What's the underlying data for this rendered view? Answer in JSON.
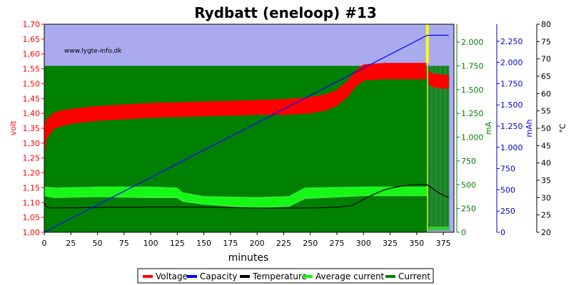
{
  "chart_data": {
    "type": "line",
    "title": "Rydbatt (eneloop) #13",
    "xlabel": "minutes",
    "watermark": "www.lygte-info.dk",
    "xlim": [
      0,
      385
    ],
    "xticks": [
      0,
      25,
      50,
      75,
      100,
      125,
      150,
      175,
      200,
      225,
      250,
      275,
      300,
      325,
      350,
      375
    ],
    "axes": {
      "volt": {
        "label": "volt",
        "color": "#ff0000",
        "range": [
          1.0,
          1.7
        ],
        "ticks": [
          "1,00",
          "1,05",
          "1,10",
          "1,15",
          "1,20",
          "1,25",
          "1,30",
          "1,35",
          "1,40",
          "1,45",
          "1,50",
          "1,55",
          "1,60",
          "1,65",
          "1,70"
        ]
      },
      "ma": {
        "label": "mA",
        "color": "#008000",
        "range": [
          0,
          2187.5
        ],
        "ticks": [
          "0",
          "250",
          "500",
          "750",
          "1.000",
          "1.250",
          "1.500",
          "1.750",
          "2.000"
        ]
      },
      "mah": {
        "label": "mAh",
        "color": "#0000cc",
        "range": [
          0,
          2450
        ],
        "ticks": [
          "0",
          "250",
          "500",
          "750",
          "1.000",
          "1.250",
          "1.500",
          "1.750",
          "2.000",
          "2.250"
        ]
      },
      "temp": {
        "label": "°C",
        "color": "#000000",
        "range": [
          20,
          80
        ],
        "ticks": [
          "20",
          "25",
          "30",
          "35",
          "40",
          "45",
          "50",
          "55",
          "60",
          "65",
          "70",
          "75",
          "80"
        ]
      }
    },
    "legend": {
      "placement": "bottom",
      "items": [
        {
          "name": "Voltage",
          "color": "#ff0000"
        },
        {
          "name": "Capacity",
          "color": "#0000ff"
        },
        {
          "name": "Temperature",
          "color": "#000000"
        },
        {
          "name": "Average current",
          "color": "#00ff00"
        },
        {
          "name": "Current",
          "color": "#008000"
        }
      ]
    },
    "charge_current_mA": 1750,
    "charge_end_min": 360,
    "series": [
      {
        "name": "Voltage",
        "unit": "V",
        "x": [
          0,
          2,
          5,
          10,
          25,
          50,
          75,
          100,
          150,
          200,
          225,
          250,
          265,
          275,
          285,
          293,
          300,
          320,
          340,
          359
        ],
        "upper": [
          1.36,
          1.38,
          1.39,
          1.405,
          1.415,
          1.425,
          1.43,
          1.435,
          1.44,
          1.445,
          1.448,
          1.455,
          1.465,
          1.48,
          1.51,
          1.545,
          1.565,
          1.57,
          1.57,
          1.57
        ],
        "lower": [
          1.26,
          1.31,
          1.33,
          1.35,
          1.365,
          1.375,
          1.38,
          1.385,
          1.39,
          1.395,
          1.395,
          1.4,
          1.41,
          1.425,
          1.455,
          1.49,
          1.51,
          1.515,
          1.515,
          1.515
        ],
        "rest_x": [
          361,
          365,
          370,
          375,
          380
        ],
        "rest_upper": [
          1.545,
          1.535,
          1.532,
          1.53,
          1.53
        ],
        "rest_lower": [
          1.5,
          1.488,
          1.485,
          1.483,
          1.483
        ]
      },
      {
        "name": "Capacity",
        "unit": "mAh",
        "x": [
          0,
          360,
          361,
          380
        ],
        "y": [
          0,
          2320,
          2320,
          2320
        ]
      },
      {
        "name": "Temperature",
        "unit": "°C",
        "x": [
          0,
          2,
          5,
          100,
          125,
          150,
          200,
          250,
          275,
          290,
          300,
          310,
          320,
          330,
          340,
          355,
          360,
          370,
          380
        ],
        "y": [
          28.5,
          27.5,
          27,
          27.3,
          27.3,
          27.2,
          27,
          27,
          27.2,
          27.8,
          29.5,
          31,
          32.3,
          33,
          33.5,
          33.8,
          33.7,
          31.5,
          30
        ]
      },
      {
        "name": "Average current",
        "unit": "mA",
        "x": [
          0,
          10,
          50,
          100,
          125,
          130,
          150,
          200,
          230,
          245,
          300,
          360
        ],
        "upper": [
          480,
          470,
          480,
          480,
          470,
          420,
          380,
          370,
          380,
          470,
          480,
          480
        ],
        "lower": [
          380,
          360,
          370,
          360,
          360,
          320,
          290,
          250,
          270,
          350,
          380,
          380
        ]
      },
      {
        "name": "Current",
        "unit": "mA",
        "x": [
          0,
          360
        ],
        "y": [
          1750,
          1750
        ],
        "pulse_x_start": 361,
        "pulse_x_end": 381,
        "pulse_high": 1750,
        "pulse_low": 20
      }
    ]
  }
}
